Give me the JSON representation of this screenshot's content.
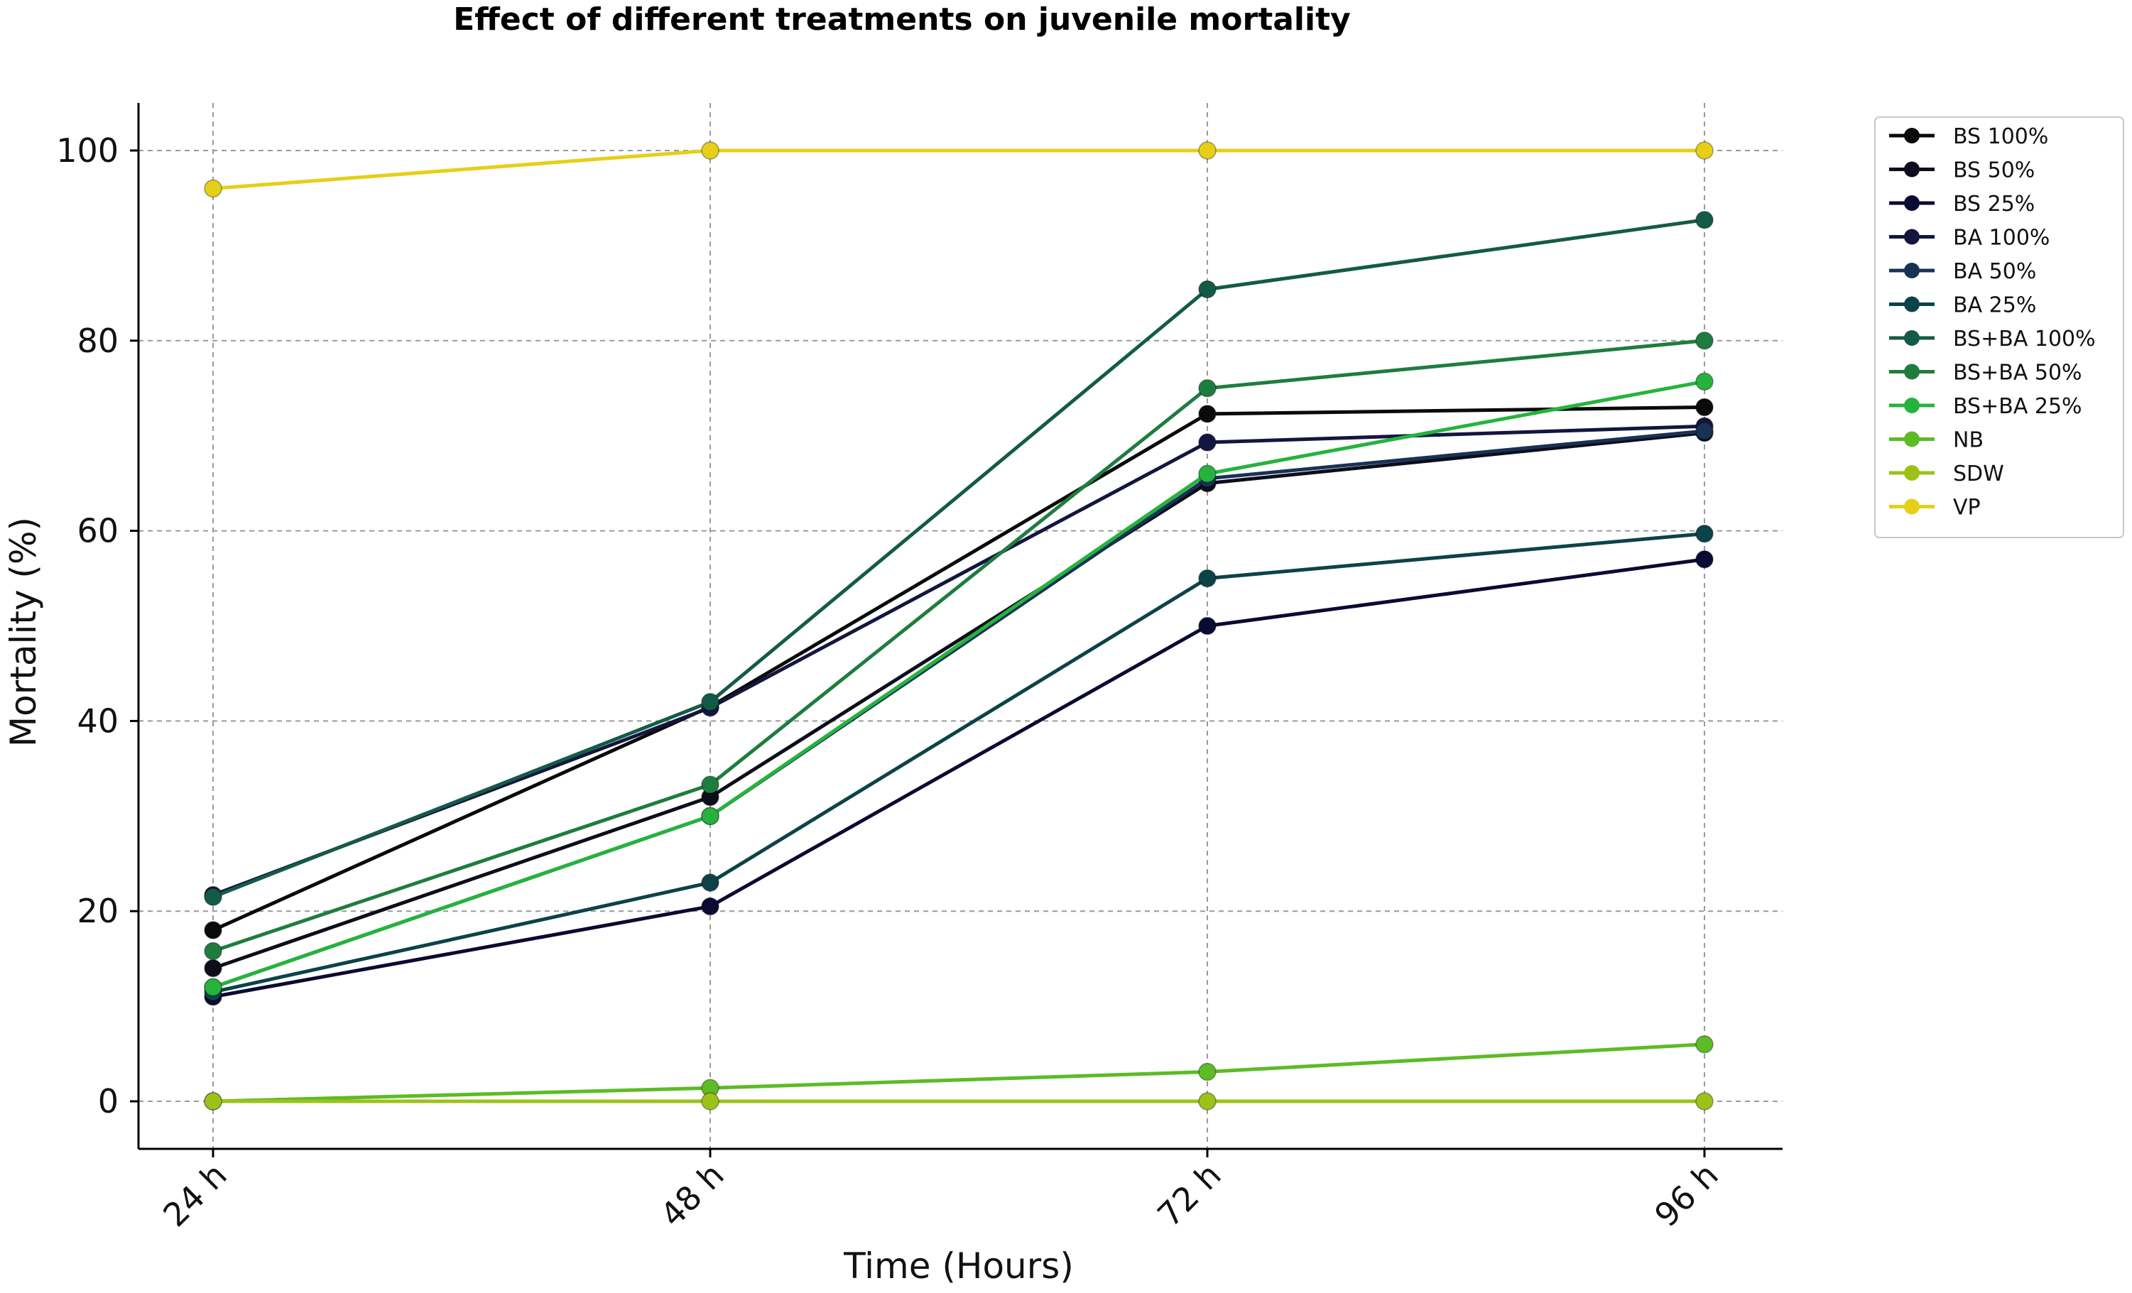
{
  "chart_data": {
    "type": "line",
    "title": "Effect of different treatments on juvenile mortality",
    "xlabel": "Time (Hours)",
    "ylabel": "Mortality (%)",
    "categories": [
      "24 h",
      "48 h",
      "72 h",
      "96 h"
    ],
    "ylim": [
      -5,
      105
    ],
    "yticks": [
      0,
      20,
      40,
      60,
      80,
      100
    ],
    "grid": true,
    "legend_position": "outside-right-top",
    "series": [
      {
        "name": "BS 100%",
        "color": "#0b0b0b",
        "values": [
          18,
          41.5,
          72.3,
          73
        ]
      },
      {
        "name": "BS 50%",
        "color": "#0d0d1c",
        "values": [
          14,
          32,
          65,
          70.3
        ]
      },
      {
        "name": "BS 25%",
        "color": "#0a0a33",
        "values": [
          11,
          20.5,
          50,
          57
        ]
      },
      {
        "name": "BA 100%",
        "color": "#14163f",
        "values": [
          21.7,
          41.4,
          69.3,
          71
        ]
      },
      {
        "name": "BA 50%",
        "color": "#173255",
        "values": [
          12,
          30,
          65.5,
          70.5
        ]
      },
      {
        "name": "BA 25%",
        "color": "#0c4348",
        "values": [
          11.5,
          23,
          55,
          59.7
        ]
      },
      {
        "name": "BS+BA 100%",
        "color": "#145b47",
        "values": [
          21.5,
          42,
          85.4,
          92.7
        ]
      },
      {
        "name": "BS+BA 50%",
        "color": "#1e7d3e",
        "values": [
          15.8,
          33.3,
          75,
          80
        ]
      },
      {
        "name": "BS+BA 25%",
        "color": "#25b33d",
        "values": [
          12,
          30,
          66,
          75.7
        ]
      },
      {
        "name": "NB",
        "color": "#5dbb25",
        "values": [
          0,
          1.4,
          3.1,
          6
        ]
      },
      {
        "name": "SDW",
        "color": "#9cc21a",
        "values": [
          0,
          0,
          0,
          0
        ]
      },
      {
        "name": "VP",
        "color": "#e6cf17",
        "values": [
          96,
          100,
          100,
          100
        ]
      }
    ]
  }
}
